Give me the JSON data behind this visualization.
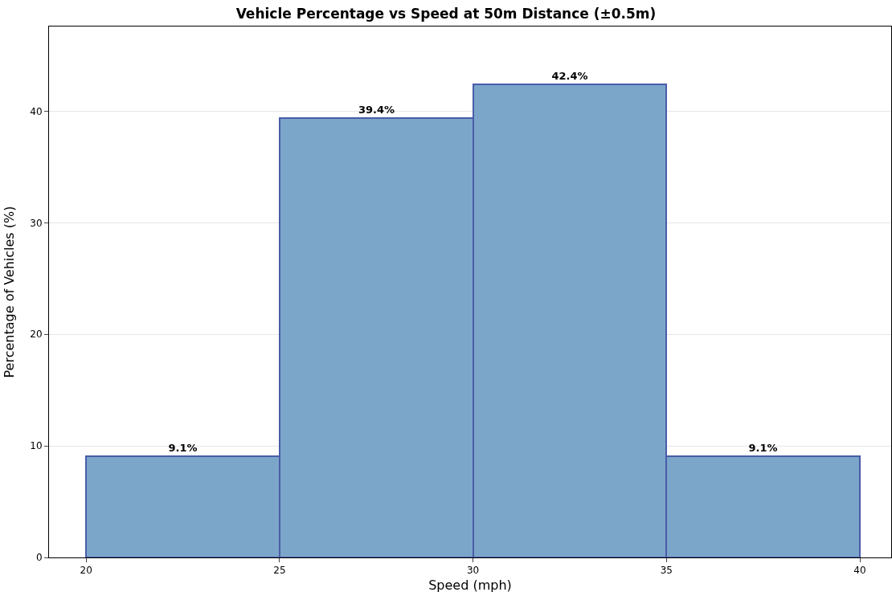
{
  "chart_data": {
    "type": "histogram",
    "title": "Vehicle Percentage vs Speed at 50m Distance (±0.5m)",
    "xlabel": "Speed (mph)",
    "ylabel": "Percentage of Vehicles (%)",
    "bins": [
      20,
      25,
      30,
      35,
      40
    ],
    "values": [
      9.1,
      39.4,
      42.4,
      9.1
    ],
    "value_labels": [
      "9.1%",
      "39.4%",
      "42.4%",
      "9.1%"
    ],
    "color": "#7ba6ca",
    "xlim": [
      19.04,
      40.81
    ],
    "xticks": [
      20,
      25,
      30,
      35,
      40
    ],
    "ylim": [
      0,
      47.6
    ],
    "yticks": [
      0,
      10,
      20,
      30,
      40
    ],
    "grid": "y"
  }
}
